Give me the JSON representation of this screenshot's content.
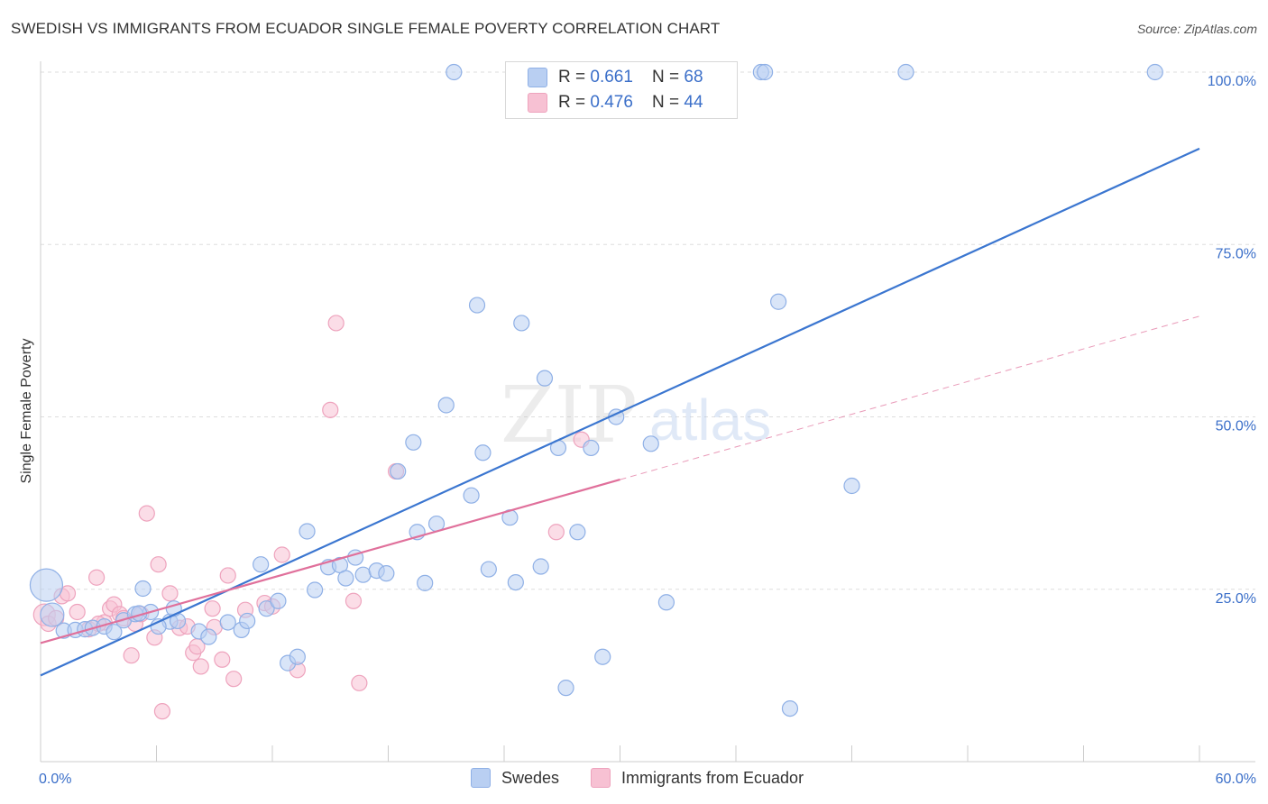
{
  "title": "SWEDISH VS IMMIGRANTS FROM ECUADOR SINGLE FEMALE POVERTY CORRELATION CHART",
  "source": "Source: ZipAtlas.com",
  "watermark": {
    "zip": "ZIP",
    "atlas": "atlas"
  },
  "colors": {
    "blue": "#3b76d0",
    "blue_fill": "#b9cff2",
    "blue_stroke": "#8fb0e6",
    "pink": "#e0709b",
    "pink_fill": "#f7c1d3",
    "pink_stroke": "#eea3bd",
    "axis_label": "#3b6fc9",
    "grid": "#dddddd"
  },
  "legend_top": {
    "rows": [
      {
        "r_label": "R = ",
        "r_value": "0.661",
        "n_label": "N = ",
        "n_value": "68",
        "color": "blue"
      },
      {
        "r_label": "R = ",
        "r_value": "0.476",
        "n_label": "N = ",
        "n_value": "44",
        "color": "pink"
      }
    ]
  },
  "legend_bottom": [
    {
      "label": "Swedes",
      "color": "blue"
    },
    {
      "label": "Immigrants from Ecuador",
      "color": "pink"
    }
  ],
  "chart_data": {
    "type": "scatter",
    "title": "SWEDISH VS IMMIGRANTS FROM ECUADOR SINGLE FEMALE POVERTY CORRELATION CHART",
    "xlabel": "",
    "ylabel": "Single Female Poverty",
    "xlim": [
      0,
      60
    ],
    "ylim": [
      0,
      100
    ],
    "x_tick_labels": [
      {
        "value": 0,
        "label": "0.0%"
      },
      {
        "value": 60,
        "label": "60.0%"
      }
    ],
    "y_tick_labels": [
      {
        "value": 25,
        "label": "25.0%"
      },
      {
        "value": 50,
        "label": "50.0%"
      },
      {
        "value": 75,
        "label": "75.0%"
      },
      {
        "value": 100,
        "label": "100.0%"
      }
    ],
    "grid": true,
    "series": [
      {
        "name": "Swedes",
        "color": "blue",
        "trend": {
          "x": [
            0,
            60
          ],
          "y": [
            12.5,
            88.9
          ],
          "style": "solid"
        },
        "points": [
          [
            0.3,
            25.6
          ],
          [
            0.6,
            21.3
          ],
          [
            1.2,
            19.0
          ],
          [
            1.8,
            19.1
          ],
          [
            2.3,
            19.2
          ],
          [
            2.7,
            19.4
          ],
          [
            3.3,
            19.6
          ],
          [
            3.8,
            18.8
          ],
          [
            4.3,
            20.5
          ],
          [
            4.9,
            21.4
          ],
          [
            5.3,
            25.1
          ],
          [
            5.7,
            21.7
          ],
          [
            5.1,
            21.5
          ],
          [
            6.7,
            20.3
          ],
          [
            7.1,
            20.4
          ],
          [
            6.9,
            22.2
          ],
          [
            6.1,
            19.6
          ],
          [
            8.2,
            18.9
          ],
          [
            8.7,
            18.1
          ],
          [
            9.7,
            20.2
          ],
          [
            10.4,
            19.1
          ],
          [
            10.7,
            20.4
          ],
          [
            11.4,
            28.6
          ],
          [
            11.7,
            22.2
          ],
          [
            12.3,
            23.3
          ],
          [
            12.8,
            14.3
          ],
          [
            13.3,
            15.2
          ],
          [
            13.8,
            33.4
          ],
          [
            14.2,
            24.9
          ],
          [
            14.9,
            28.2
          ],
          [
            15.5,
            28.5
          ],
          [
            15.8,
            26.6
          ],
          [
            16.3,
            29.6
          ],
          [
            16.7,
            27.1
          ],
          [
            17.4,
            27.7
          ],
          [
            17.9,
            27.3
          ],
          [
            18.5,
            42.1
          ],
          [
            19.3,
            46.3
          ],
          [
            19.5,
            33.3
          ],
          [
            19.9,
            25.9
          ],
          [
            20.5,
            34.5
          ],
          [
            21.0,
            51.7
          ],
          [
            21.4,
            100
          ],
          [
            22.3,
            38.6
          ],
          [
            22.6,
            66.2
          ],
          [
            22.9,
            44.8
          ],
          [
            23.2,
            27.9
          ],
          [
            24.3,
            35.4
          ],
          [
            24.6,
            26.0
          ],
          [
            24.9,
            63.6
          ],
          [
            25.9,
            28.3
          ],
          [
            26.1,
            55.6
          ],
          [
            26.8,
            45.5
          ],
          [
            27.2,
            10.7
          ],
          [
            27.8,
            33.3
          ],
          [
            28.5,
            45.5
          ],
          [
            29.1,
            15.2
          ],
          [
            29.8,
            50.0
          ],
          [
            30.1,
            100
          ],
          [
            31.6,
            46.1
          ],
          [
            32.4,
            23.1
          ],
          [
            37.3,
            100
          ],
          [
            37.5,
            100
          ],
          [
            38.2,
            66.7
          ],
          [
            38.8,
            7.7
          ],
          [
            42.0,
            40.0
          ],
          [
            44.8,
            100
          ],
          [
            57.7,
            100
          ]
        ]
      },
      {
        "name": "Immigrants from Ecuador",
        "color": "pink",
        "trend": {
          "x": [
            0,
            30
          ],
          "y": [
            17.2,
            40.9
          ],
          "style": "solid",
          "extended": {
            "x": [
              30,
              60
            ],
            "y": [
              40.9,
              64.6
            ],
            "style": "dashed"
          }
        },
        "points": [
          [
            0.2,
            21.3
          ],
          [
            0.4,
            20.0
          ],
          [
            0.8,
            20.8
          ],
          [
            1.1,
            24.0
          ],
          [
            1.4,
            24.4
          ],
          [
            1.9,
            21.7
          ],
          [
            2.5,
            19.2
          ],
          [
            2.9,
            26.7
          ],
          [
            3.3,
            20.2
          ],
          [
            3.6,
            22.2
          ],
          [
            3.8,
            22.8
          ],
          [
            4.1,
            21.4
          ],
          [
            4.3,
            20.8
          ],
          [
            4.7,
            15.4
          ],
          [
            4.9,
            20.0
          ],
          [
            5.2,
            21.4
          ],
          [
            5.5,
            36.0
          ],
          [
            5.9,
            18.0
          ],
          [
            6.1,
            28.6
          ],
          [
            6.3,
            7.3
          ],
          [
            6.7,
            24.4
          ],
          [
            7.2,
            19.4
          ],
          [
            7.6,
            19.6
          ],
          [
            7.9,
            15.8
          ],
          [
            8.1,
            16.7
          ],
          [
            8.3,
            13.8
          ],
          [
            8.9,
            22.2
          ],
          [
            9.4,
            14.8
          ],
          [
            9.7,
            27.0
          ],
          [
            10.0,
            12.0
          ],
          [
            10.6,
            22.0
          ],
          [
            11.6,
            23.0
          ],
          [
            12.5,
            30.0
          ],
          [
            13.3,
            13.3
          ],
          [
            15.0,
            51.0
          ],
          [
            15.3,
            63.6
          ],
          [
            16.2,
            23.3
          ],
          [
            16.5,
            11.4
          ],
          [
            18.4,
            42.1
          ],
          [
            28.0,
            46.7
          ],
          [
            26.7,
            33.3
          ],
          [
            12.0,
            22.5
          ],
          [
            3.0,
            20.0
          ],
          [
            9.0,
            19.5
          ]
        ]
      }
    ]
  },
  "texts": {
    "y_axis_title": "Single Female Poverty"
  }
}
